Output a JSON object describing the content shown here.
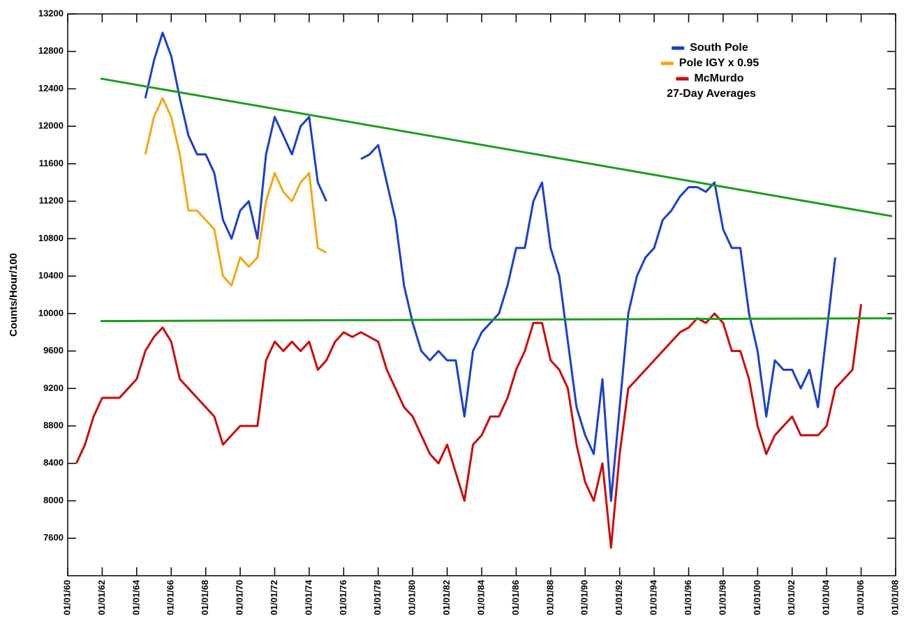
{
  "chart_data": {
    "type": "line",
    "y_label": "Counts/Hour/100",
    "annotation": "27-Day Averages",
    "legend": "top-right",
    "xlim": [
      1960,
      2008
    ],
    "xticks": [
      {
        "value": 1960,
        "label": "01/01/60"
      },
      {
        "value": 1962,
        "label": "01/01/62"
      },
      {
        "value": 1964,
        "label": "01/01/64"
      },
      {
        "value": 1966,
        "label": "01/01/66"
      },
      {
        "value": 1968,
        "label": "01/01/68"
      },
      {
        "value": 1970,
        "label": "01/01/70"
      },
      {
        "value": 1972,
        "label": "01/01/72"
      },
      {
        "value": 1974,
        "label": "01/01/74"
      },
      {
        "value": 1976,
        "label": "01/01/76"
      },
      {
        "value": 1978,
        "label": "01/01/78"
      },
      {
        "value": 1980,
        "label": "01/01/80"
      },
      {
        "value": 1982,
        "label": "01/01/82"
      },
      {
        "value": 1984,
        "label": "01/01/84"
      },
      {
        "value": 1986,
        "label": "01/01/86"
      },
      {
        "value": 1988,
        "label": "01/01/88"
      },
      {
        "value": 1990,
        "label": "01/01/90"
      },
      {
        "value": 1992,
        "label": "01/01/92"
      },
      {
        "value": 1994,
        "label": "01/01/94"
      },
      {
        "value": 1996,
        "label": "01/01/96"
      },
      {
        "value": 1998,
        "label": "01/01/98"
      },
      {
        "value": 2000,
        "label": "01/01/00"
      },
      {
        "value": 2002,
        "label": "01/01/02"
      },
      {
        "value": 2004,
        "label": "01/01/04"
      },
      {
        "value": 2006,
        "label": "01/01/06"
      },
      {
        "value": 2008,
        "label": "01/01/08"
      }
    ],
    "ylim": [
      7200,
      13200
    ],
    "yticks": [
      7600,
      8000,
      8400,
      8800,
      9200,
      9600,
      10000,
      10400,
      10800,
      11200,
      11600,
      12000,
      12400,
      12800,
      13200
    ],
    "x": [
      1960.5,
      1961,
      1961.5,
      1962,
      1962.5,
      1963,
      1963.5,
      1964,
      1964.5,
      1965,
      1965.5,
      1966,
      1966.5,
      1967,
      1967.5,
      1968,
      1968.5,
      1969,
      1969.5,
      1970,
      1970.5,
      1971,
      1971.5,
      1972,
      1972.5,
      1973,
      1973.5,
      1974,
      1974.5,
      1975,
      1975.5,
      1976,
      1976.5,
      1977,
      1977.5,
      1978,
      1978.5,
      1979,
      1979.5,
      1980,
      1980.5,
      1981,
      1981.5,
      1982,
      1982.5,
      1983,
      1983.5,
      1984,
      1984.5,
      1985,
      1985.5,
      1986,
      1986.5,
      1987,
      1987.5,
      1988,
      1988.5,
      1989,
      1989.5,
      1990,
      1990.5,
      1991,
      1991.5,
      1992,
      1992.5,
      1993,
      1993.5,
      1994,
      1994.5,
      1995,
      1995.5,
      1996,
      1996.5,
      1997,
      1997.5,
      1998,
      1998.5,
      1999,
      1999.5,
      2000,
      2000.5,
      2001,
      2001.5,
      2002,
      2002.5,
      2003,
      2003.5,
      2004,
      2004.5,
      2005,
      2005.5,
      2006
    ],
    "series": [
      {
        "name": "South Pole",
        "color": "#1a3fcc",
        "values": [
          null,
          null,
          null,
          null,
          null,
          null,
          null,
          null,
          12300,
          12700,
          13000,
          12750,
          12300,
          11900,
          11700,
          11700,
          11500,
          11000,
          10800,
          11100,
          11200,
          10800,
          11700,
          12100,
          11900,
          11700,
          12000,
          12100,
          11400,
          11200,
          null,
          null,
          null,
          11650,
          11700,
          11800,
          11400,
          11000,
          10300,
          9900,
          9600,
          9500,
          9600,
          9500,
          9500,
          8900,
          9600,
          9800,
          9900,
          10000,
          10300,
          10700,
          10700,
          11200,
          11400,
          10700,
          10400,
          9700,
          9000,
          8700,
          8500,
          9300,
          8000,
          9000,
          10000,
          10400,
          10600,
          10700,
          11000,
          11100,
          11250,
          11350,
          11350,
          11300,
          11400,
          10900,
          10700,
          10700,
          10000,
          9600,
          8900,
          9500,
          9400,
          9400,
          9200,
          9400,
          9000,
          9800,
          10600,
          null,
          null,
          null
        ]
      },
      {
        "name": "Pole IGY x 0.95",
        "color": "#f5a614",
        "values": [
          null,
          null,
          null,
          null,
          null,
          null,
          null,
          null,
          11700,
          12100,
          12300,
          12100,
          11700,
          11100,
          11100,
          11000,
          10900,
          10400,
          10300,
          10600,
          10500,
          10600,
          11200,
          11500,
          11300,
          11200,
          11400,
          11500,
          10700,
          10650,
          null,
          null,
          null,
          null,
          null,
          null,
          null,
          null,
          null,
          null,
          null,
          null,
          null,
          null,
          null,
          null,
          null,
          null,
          null,
          null,
          null,
          null,
          null,
          null,
          null,
          null,
          null,
          null,
          null,
          null,
          null,
          null,
          null,
          null,
          null,
          null,
          null,
          null,
          null,
          null,
          null,
          null,
          null,
          null,
          null,
          null,
          null,
          null,
          null,
          null,
          null,
          null,
          null,
          null,
          null,
          null,
          null,
          null,
          null,
          null,
          null,
          null
        ]
      },
      {
        "name": "McMurdo",
        "color": "#cc0a0a",
        "values": [
          8400,
          8600,
          8900,
          9100,
          9100,
          9100,
          9200,
          9300,
          9600,
          9750,
          9850,
          9700,
          9300,
          9200,
          9100,
          9000,
          8900,
          8600,
          8700,
          8800,
          8800,
          8800,
          9500,
          9700,
          9600,
          9700,
          9600,
          9700,
          9400,
          9500,
          9700,
          9800,
          9750,
          9800,
          9750,
          9700,
          9400,
          9200,
          9000,
          8900,
          8700,
          8500,
          8400,
          8600,
          8300,
          8000,
          8600,
          8700,
          8900,
          8900,
          9100,
          9400,
          9600,
          9900,
          9900,
          9500,
          9400,
          9200,
          8600,
          8200,
          8000,
          8400,
          7500,
          8500,
          9200,
          9300,
          9400,
          9500,
          9600,
          9700,
          9800,
          9850,
          9950,
          9900,
          10000,
          9900,
          9600,
          9600,
          9300,
          8800,
          8500,
          8700,
          8800,
          8900,
          8700,
          8700,
          8700,
          8800,
          9200,
          9300,
          9400,
          10100
        ]
      }
    ],
    "trend_lines": [
      {
        "color": "#1a9e1a",
        "x": [
          1961.9,
          2007.8
        ],
        "values": [
          12510,
          11040
        ]
      },
      {
        "color": "#1a9e1a",
        "x": [
          1961.9,
          2007.8
        ],
        "values": [
          9920,
          9950
        ]
      }
    ]
  }
}
